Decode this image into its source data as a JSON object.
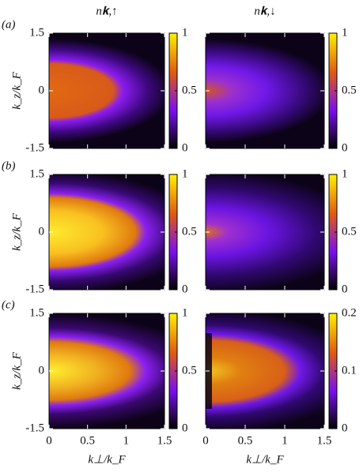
{
  "chart_data": [
    {
      "type": "heatmap",
      "title": "n𝐤,↑",
      "panel_label": "(a)",
      "ylabel": "k_z/k_F",
      "xlim": [
        0,
        1.5
      ],
      "ylim": [
        -1.5,
        1.5
      ],
      "yticks": [
        1.5,
        0,
        -1.5
      ],
      "colorbar": {
        "lim": [
          0,
          1
        ],
        "ticks": [
          0,
          0.5,
          1
        ]
      }
    },
    {
      "type": "heatmap",
      "title": "n𝐤,↓",
      "xlim": [
        0,
        1.5
      ],
      "ylim": [
        -1.5,
        1.5
      ],
      "colorbar": {
        "lim": [
          0,
          1
        ],
        "ticks": [
          0,
          0.5,
          1
        ]
      }
    },
    {
      "type": "heatmap",
      "panel_label": "(b)",
      "ylabel": "k_z/k_F",
      "xlim": [
        0,
        1.5
      ],
      "ylim": [
        -1.5,
        1.5
      ],
      "yticks": [
        1.5,
        0,
        -1.5
      ],
      "colorbar": {
        "lim": [
          0,
          1
        ],
        "ticks": [
          0,
          0.5,
          1
        ]
      }
    },
    {
      "type": "heatmap",
      "xlim": [
        0,
        1.5
      ],
      "ylim": [
        -1.5,
        1.5
      ],
      "colorbar": {
        "lim": [
          0,
          1
        ],
        "ticks": [
          0,
          0.5,
          1
        ]
      }
    },
    {
      "type": "heatmap",
      "panel_label": "(c)",
      "ylabel": "k_z/k_F",
      "xlabel": "k⊥/k_F",
      "xlim": [
        0,
        1.5
      ],
      "ylim": [
        -1.5,
        1.5
      ],
      "xticks": [
        0,
        0.5,
        1,
        1.5
      ],
      "yticks": [
        1.5,
        0,
        -1.5
      ],
      "colorbar": {
        "lim": [
          0,
          1
        ],
        "ticks": [
          0,
          0.5,
          1
        ]
      }
    },
    {
      "type": "heatmap",
      "xlabel": "k⊥/k_F",
      "xlim": [
        0,
        1.5
      ],
      "ylim": [
        -1.5,
        1.5
      ],
      "xticks": [
        0,
        0.5,
        1,
        1.5
      ],
      "colorbar": {
        "lim": [
          0,
          0.2
        ],
        "ticks": [
          0,
          0.1,
          0.2
        ]
      }
    }
  ]
}
